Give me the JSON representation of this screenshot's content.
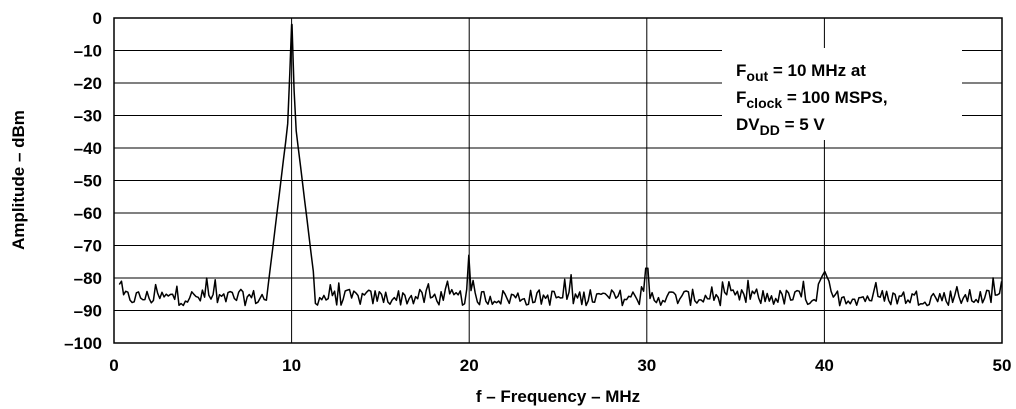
{
  "chart_data": {
    "type": "line",
    "title": "",
    "xlabel": "f – Frequency – MHz",
    "ylabel": "Amplitude – dBm",
    "xlim": [
      0,
      50
    ],
    "ylim": [
      -100,
      0
    ],
    "xticks": [
      "0",
      "10",
      "20",
      "30",
      "40",
      "50"
    ],
    "yticks": [
      "0",
      "–10",
      "–20",
      "–30",
      "–40",
      "–50",
      "–60",
      "–70",
      "–80",
      "–90",
      "–100"
    ],
    "grid": true,
    "annotation": {
      "line1_main": "F",
      "line1_sub": "out",
      "line1_rest": " = 10 MHz at",
      "line2_main": "F",
      "line2_sub": "clock",
      "line2_rest": " = 100 MSPS,",
      "line3_main": "DV",
      "line3_sub": "DD",
      "line3_rest": " = 5 V"
    },
    "series": [
      {
        "x": [
          0.3,
          10.0,
          20.0,
          30.0,
          40.0,
          50.0
        ],
        "values": [
          -82,
          -2,
          -73,
          -77,
          -78,
          -81
        ],
        "noise_floor": -86,
        "peaks": [
          {
            "f": 5.2,
            "amp": -80
          },
          {
            "f": 10.0,
            "amp": -2
          },
          {
            "f": 20.0,
            "amp": -73
          },
          {
            "f": 30.0,
            "amp": -77
          },
          {
            "f": 40.0,
            "amp": -78
          },
          {
            "f": 50.0,
            "amp": -81
          }
        ]
      }
    ]
  }
}
